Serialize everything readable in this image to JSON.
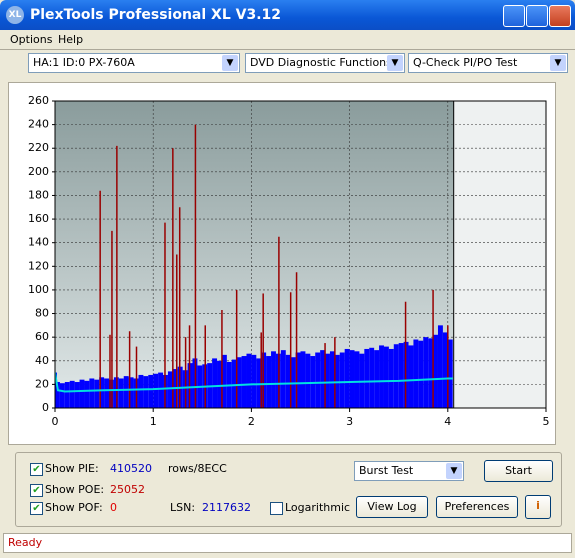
{
  "window": {
    "title": "PlexTools Professional XL V3.12"
  },
  "menu": [
    "Options",
    "Help"
  ],
  "toolbar": {
    "drive": "HA:1 ID:0  PX-760A",
    "function": "DVD Diagnostic Functions",
    "test": "Q-Check PI/PO Test"
  },
  "chart_data": {
    "type": "scan",
    "xlim": [
      0,
      5
    ],
    "xticks": [
      0,
      1,
      2,
      3,
      4,
      5
    ],
    "ylim": [
      0,
      260
    ],
    "yticks": [
      0,
      20,
      40,
      60,
      80,
      100,
      120,
      140,
      160,
      180,
      200,
      220,
      240,
      260
    ],
    "grid": true,
    "scan_end": 4.06,
    "series": [
      {
        "name": "PIE",
        "color": "#0000ff",
        "x": [
          0,
          0.05,
          0.1,
          0.15,
          0.2,
          0.25,
          0.3,
          0.35,
          0.4,
          0.45,
          0.5,
          0.55,
          0.6,
          0.65,
          0.7,
          0.75,
          0.8,
          0.85,
          0.9,
          0.95,
          1,
          1.05,
          1.1,
          1.15,
          1.2,
          1.25,
          1.3,
          1.35,
          1.4,
          1.45,
          1.5,
          1.55,
          1.6,
          1.65,
          1.7,
          1.75,
          1.8,
          1.85,
          1.9,
          1.95,
          2,
          2.05,
          2.1,
          2.15,
          2.2,
          2.25,
          2.3,
          2.35,
          2.4,
          2.45,
          2.5,
          2.55,
          2.6,
          2.65,
          2.7,
          2.75,
          2.8,
          2.85,
          2.9,
          2.95,
          3,
          3.05,
          3.1,
          3.15,
          3.2,
          3.25,
          3.3,
          3.35,
          3.4,
          3.45,
          3.5,
          3.55,
          3.6,
          3.65,
          3.7,
          3.75,
          3.8,
          3.85,
          3.9,
          3.95,
          4,
          4.05
        ],
        "values": [
          30,
          22,
          21,
          22,
          23,
          22,
          24,
          23,
          25,
          24,
          26,
          25,
          24,
          26,
          25,
          27,
          26,
          25,
          28,
          27,
          28,
          29,
          30,
          28,
          31,
          33,
          35,
          32,
          38,
          42,
          36,
          37,
          38,
          42,
          40,
          45,
          39,
          41,
          43,
          44,
          46,
          45,
          42,
          47,
          44,
          48,
          46,
          49,
          45,
          43,
          47,
          48,
          46,
          44,
          47,
          49,
          46,
          48,
          45,
          47,
          50,
          49,
          48,
          46,
          50,
          51,
          49,
          53,
          52,
          50,
          54,
          55,
          56,
          53,
          58,
          57,
          60,
          59,
          62,
          70,
          64,
          58
        ]
      },
      {
        "name": "POE",
        "color": "#990000",
        "x": [
          0.46,
          0.56,
          0.58,
          0.63,
          0.76,
          0.83,
          1.12,
          1.2,
          1.24,
          1.27,
          1.33,
          1.37,
          1.43,
          1.53,
          1.7,
          1.85,
          2.1,
          2.12,
          2.28,
          2.4,
          2.46,
          2.75,
          2.85,
          3.57,
          3.85,
          4.0
        ],
        "values": [
          184,
          62,
          150,
          222,
          65,
          52,
          157,
          220,
          130,
          170,
          60,
          70,
          240,
          70,
          83,
          100,
          64,
          97,
          145,
          98,
          115,
          55,
          60,
          90,
          100,
          70
        ]
      },
      {
        "name": "Average",
        "color": "#00e0e0",
        "x": [
          0,
          0.03,
          0.1,
          0.5,
          1,
          1.5,
          2,
          2.5,
          3,
          3.5,
          4,
          4.05
        ],
        "values": [
          30,
          15,
          14,
          15,
          16,
          18,
          20,
          21,
          22,
          23,
          25,
          25
        ]
      }
    ]
  },
  "controls": {
    "pie": {
      "label": "Show PIE:",
      "checked": true,
      "value": 410520,
      "unit": "rows/8ECC"
    },
    "poe": {
      "label": "Show POE:",
      "checked": true,
      "value": 25052
    },
    "pof": {
      "label": "Show POF:",
      "checked": true,
      "value": 0
    },
    "lsn": {
      "label": "LSN:",
      "value": 2117632
    },
    "logarithmic": {
      "label": "Logarithmic",
      "checked": false
    },
    "mode": "Burst Test",
    "start": "Start",
    "view_log": "View Log",
    "preferences": "Preferences"
  },
  "status": "Ready"
}
